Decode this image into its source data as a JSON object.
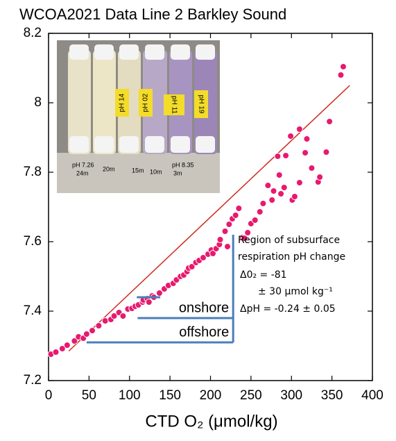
{
  "chart_data": {
    "type": "scatter",
    "title": "WCOA2021 Data Line 2 Barkley Sound",
    "x_label": "CTD O₂ (μmol/kg)",
    "xlim": [
      0,
      400
    ],
    "xticks": [
      0,
      50,
      100,
      150,
      200,
      250,
      300,
      350,
      400
    ],
    "ylim": [
      7.2,
      8.2
    ],
    "yticks": [
      7.2,
      7.4,
      7.6,
      7.8,
      8,
      8.2
    ],
    "series": [
      {
        "color": "#e8196e",
        "x": [
          3,
          9,
          17,
          23,
          32,
          37,
          43,
          47,
          54,
          62,
          70,
          77,
          81,
          87,
          92,
          98,
          103,
          107,
          111,
          116,
          117,
          122,
          124,
          128,
          130,
          137,
          143,
          148,
          154,
          158,
          163,
          167,
          171,
          173,
          177,
          182,
          186,
          191,
          197,
          201,
          203,
          207,
          211,
          212,
          218,
          221,
          223,
          227,
          231,
          235,
          240,
          242,
          246,
          250,
          255,
          261,
          265,
          271,
          276,
          278,
          283,
          285,
          287,
          291,
          293,
          299,
          301,
          304,
          310,
          310,
          317,
          319,
          325,
          333,
          335,
          343,
          347,
          361,
          364
        ],
        "y": [
          7.276,
          7.282,
          7.292,
          7.302,
          7.314,
          7.326,
          7.322,
          7.334,
          7.344,
          7.358,
          7.372,
          7.376,
          7.386,
          7.396,
          7.386,
          7.406,
          7.408,
          7.414,
          7.418,
          7.426,
          7.432,
          7.436,
          7.426,
          7.444,
          7.44,
          7.452,
          7.464,
          7.474,
          7.48,
          7.49,
          7.5,
          7.504,
          7.514,
          7.524,
          7.528,
          7.54,
          7.546,
          7.554,
          7.564,
          7.576,
          7.566,
          7.58,
          7.592,
          7.606,
          7.63,
          7.586,
          7.65,
          7.666,
          7.676,
          7.696,
          7.612,
          7.61,
          7.626,
          7.652,
          7.662,
          7.686,
          7.71,
          7.762,
          7.72,
          7.746,
          7.846,
          7.792,
          7.738,
          7.756,
          7.848,
          7.904,
          7.72,
          7.73,
          7.77,
          7.924,
          7.856,
          7.896,
          7.812,
          7.772,
          7.786,
          7.858,
          7.946,
          8.08,
          8.104
        ]
      }
    ],
    "fit_line": {
      "color": "#cc2b1f",
      "x": [
        25,
        372
      ],
      "y": [
        7.285,
        8.05
      ]
    },
    "reference_lines": {
      "color": "#4a7ebb",
      "offshore": {
        "y": 7.31,
        "x": [
          47,
          228
        ],
        "label": "offshore"
      },
      "onshore": {
        "y": 7.38,
        "x": [
          110,
          228
        ],
        "label": "onshore"
      },
      "upper": {
        "y": 7.44,
        "x": [
          109,
          138
        ]
      },
      "region": {
        "x": 228,
        "y": [
          7.31,
          7.62
        ]
      }
    },
    "annotation": [
      "Region of subsurface",
      "respiration pH change",
      "Δ0₂ = -81",
      "± 30 μmol kg⁻¹",
      "ΔpH = -0.24 ± 0.05"
    ],
    "inset_photo": {
      "vial_labels": [
        "pH 14",
        "pH 02",
        "pH 11",
        "pH 19"
      ],
      "handwriting": [
        "pH 7.26",
        "24m",
        "20m",
        "15m",
        "10m",
        "pH 8.35",
        "3m"
      ]
    }
  }
}
